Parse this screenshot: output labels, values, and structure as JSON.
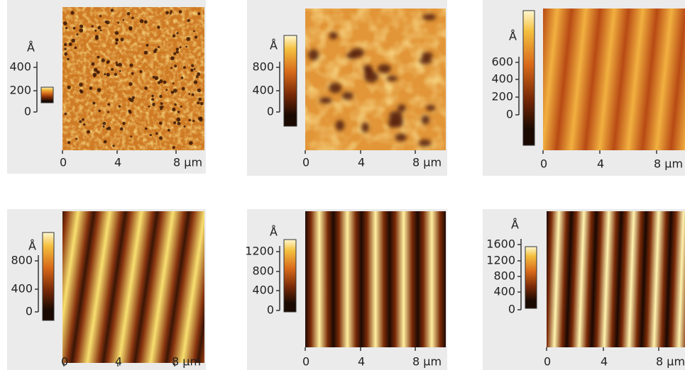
{
  "panels": [
    {
      "z_unit": "Å",
      "z_ticks": [
        "0",
        "200",
        "400"
      ],
      "x_ticks": [
        "0",
        "4",
        "8 µm"
      ]
    },
    {
      "z_unit": "Å",
      "z_ticks": [
        "0",
        "400",
        "800"
      ],
      "x_ticks": [
        "0",
        "4",
        "8 µm"
      ]
    },
    {
      "z_unit": "Å",
      "z_ticks": [
        "0",
        "200",
        "400",
        "600"
      ],
      "x_ticks": [
        "0",
        "4",
        "8 µm"
      ]
    },
    {
      "z_unit": "Å",
      "z_ticks": [
        "0",
        "400",
        "800"
      ],
      "x_ticks": [
        "0",
        "4",
        "8 µm"
      ]
    },
    {
      "z_unit": "Å",
      "z_ticks": [
        "0",
        "400",
        "800",
        "1200"
      ],
      "x_ticks": [
        "0",
        "4",
        "8 µm"
      ]
    },
    {
      "z_unit": "Å",
      "z_ticks": [
        "0",
        "400",
        "800",
        "1200",
        "1600"
      ],
      "x_ticks": [
        "0",
        "4",
        "8 µm"
      ]
    }
  ]
}
